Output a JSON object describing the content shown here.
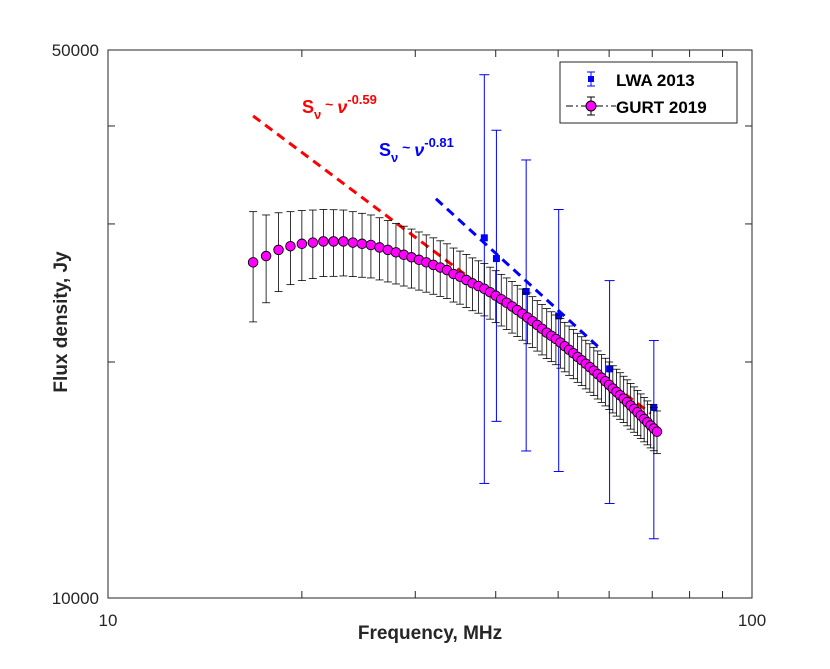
{
  "chart_data": {
    "type": "scatter",
    "title": "",
    "xlabel": "Frequency, MHz",
    "ylabel": "Flux density, Jy",
    "xscale": "log",
    "yscale": "log",
    "xlim": [
      10,
      100
    ],
    "ylim": [
      10000,
      50000
    ],
    "x_ticks": [
      10,
      100
    ],
    "x_tick_labels": [
      "10",
      "100"
    ],
    "y_ticks": [
      10000,
      50000
    ],
    "y_tick_labels": [
      "10000",
      "50000"
    ],
    "legend_position": "top-right",
    "colors": {
      "lwa": "#0000ff",
      "gurt_face": "#ff00ff",
      "gurt_edge": "#000000",
      "fit_red": "#ff0000",
      "fit_blue": "#0000ff",
      "axis": "#262626"
    },
    "series": [
      {
        "name": "LWA 2013",
        "marker": "square",
        "x": [
          38.4,
          40.1,
          44.6,
          50.1,
          60.1,
          70.4
        ],
        "y": [
          28800,
          27100,
          24600,
          22900,
          19600,
          17500
        ],
        "y_err_low": [
          14800,
          10300,
          9200,
          8400,
          6400,
          5600
        ],
        "y_err_high": [
          17700,
          12400,
          11600,
          8400,
          5800,
          3800
        ]
      },
      {
        "name": "GURT 2019",
        "marker": "circle",
        "x": [
          16.8,
          17.6,
          18.4,
          19.2,
          20.0,
          20.8,
          21.6,
          22.4,
          23.2,
          24.0,
          24.8,
          25.6,
          26.4,
          27.2,
          28.0,
          28.8,
          29.6,
          30.4,
          31.2,
          32.0,
          32.8,
          33.6,
          34.4,
          35.2,
          36.0,
          36.8,
          37.6,
          38.4,
          39.2,
          40.0,
          40.8,
          41.6,
          42.4,
          43.2,
          44.0,
          44.8,
          45.6,
          46.4,
          47.2,
          48.0,
          48.8,
          49.6,
          50.4,
          51.2,
          52.0,
          52.8,
          53.6,
          54.4,
          55.2,
          56.0,
          56.8,
          57.6,
          58.4,
          59.2,
          60.0,
          60.8,
          61.6,
          62.4,
          63.2,
          64.0,
          64.8,
          65.6,
          66.4,
          67.2,
          68.0,
          68.8,
          69.6,
          70.4,
          71.2
        ],
        "y": [
          26800,
          27300,
          27800,
          28100,
          28300,
          28400,
          28500,
          28500,
          28500,
          28400,
          28300,
          28200,
          28000,
          27800,
          27600,
          27400,
          27200,
          27000,
          26800,
          26600,
          26400,
          26200,
          25900,
          25700,
          25450,
          25200,
          25000,
          24800,
          24550,
          24300,
          24050,
          23800,
          23550,
          23300,
          23050,
          22800,
          22550,
          22300,
          22050,
          21800,
          21600,
          21400,
          21180,
          20950,
          20730,
          20520,
          20300,
          20100,
          19900,
          19700,
          19500,
          19300,
          19100,
          18900,
          18700,
          18500,
          18320,
          18140,
          17960,
          17780,
          17600,
          17430,
          17260,
          17090,
          16920,
          16760,
          16600,
          16450,
          16300
        ],
        "y_err": [
          4300,
          3500,
          3200,
          3000,
          2900,
          2850,
          2800,
          2780,
          2750,
          2700,
          2650,
          2600,
          2550,
          2500,
          2450,
          2400,
          2350,
          2300,
          2250,
          2200,
          2150,
          2100,
          2050,
          2000,
          1980,
          1950,
          1920,
          1900,
          1870,
          1850,
          1820,
          1800,
          1780,
          1750,
          1730,
          1700,
          1680,
          1650,
          1630,
          1600,
          1580,
          1560,
          1540,
          1520,
          1500,
          1480,
          1460,
          1440,
          1420,
          1400,
          1380,
          1360,
          1340,
          1320,
          1300,
          1280,
          1260,
          1240,
          1220,
          1200,
          1180,
          1160,
          1140,
          1120,
          1100,
          1080,
          1060,
          1040,
          1020
        ]
      }
    ],
    "fit_lines": [
      {
        "name": "red-fit",
        "x": [
          16.8,
          69.6
        ],
        "y": [
          41200,
          17200
        ],
        "color": "red"
      },
      {
        "name": "blue-fit",
        "x": [
          32.3,
          58.5
        ],
        "y": [
          32300,
          20700
        ],
        "color": "blue"
      }
    ],
    "annotations": [
      {
        "name": "red-fit-label",
        "base": "S",
        "sub": "ν",
        "mid": " ~ ",
        "sym": "ν",
        "exp": "-0.59",
        "color": "red"
      },
      {
        "name": "blue-fit-label",
        "base": "S",
        "sub": "ν",
        "mid": " ~ ",
        "sym": "ν",
        "exp": "-0.81",
        "color": "blue"
      }
    ]
  }
}
